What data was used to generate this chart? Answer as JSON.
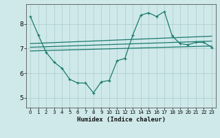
{
  "xlabel": "Humidex (Indice chaleur)",
  "background_color": "#cfe9ea",
  "grid_color": "#b0cfd0",
  "line_color": "#1a7a6e",
  "x_ticks": [
    0,
    1,
    2,
    3,
    4,
    5,
    6,
    7,
    8,
    9,
    10,
    11,
    12,
    13,
    14,
    15,
    16,
    17,
    18,
    19,
    20,
    21,
    22,
    23
  ],
  "y_ticks": [
    5,
    6,
    7,
    8
  ],
  "ylim": [
    4.6,
    8.8
  ],
  "xlim": [
    -0.5,
    23.5
  ],
  "main_line": {
    "x": [
      0,
      1,
      2,
      3,
      4,
      5,
      6,
      7,
      8,
      9,
      10,
      11,
      12,
      13,
      14,
      15,
      16,
      17,
      18,
      19,
      20,
      21,
      22,
      23
    ],
    "y": [
      8.3,
      7.55,
      6.85,
      6.45,
      6.2,
      5.75,
      5.6,
      5.6,
      5.2,
      5.65,
      5.7,
      6.5,
      6.6,
      7.55,
      8.35,
      8.45,
      8.3,
      8.5,
      7.5,
      7.2,
      7.15,
      7.25,
      7.25,
      7.05
    ]
  },
  "trend_lines": [
    {
      "x": [
        0,
        23
      ],
      "y": [
        6.9,
        7.1
      ]
    },
    {
      "x": [
        0,
        23
      ],
      "y": [
        7.05,
        7.3
      ]
    },
    {
      "x": [
        0,
        23
      ],
      "y": [
        7.2,
        7.5
      ]
    }
  ]
}
